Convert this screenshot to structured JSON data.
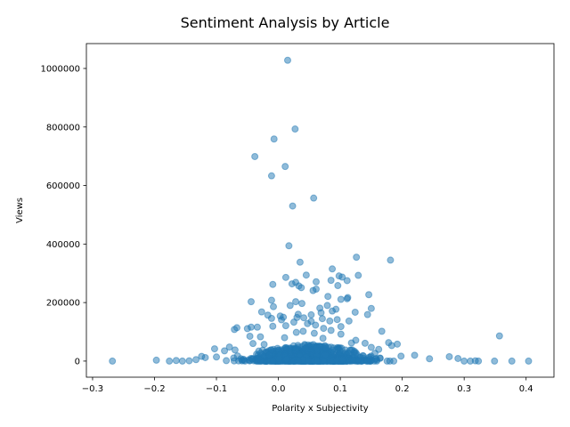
{
  "chart_data": {
    "type": "scatter",
    "title": "Sentiment Analysis by Article",
    "xlabel": "Polarity x Subjectivity",
    "ylabel": "Views",
    "xlim": [
      -0.31,
      0.445
    ],
    "ylim": [
      -55000,
      1085000
    ],
    "xticks": [
      -0.3,
      -0.2,
      -0.1,
      0.0,
      0.1,
      0.2,
      0.3,
      0.4
    ],
    "xtick_labels": [
      "−0.3",
      "−0.2",
      "−0.1",
      "0.0",
      "0.1",
      "0.2",
      "0.3",
      "0.4"
    ],
    "yticks": [
      0,
      200000,
      400000,
      600000,
      800000,
      1000000
    ],
    "ytick_labels": [
      "0",
      "200000",
      "400000",
      "600000",
      "800000",
      "1000000"
    ],
    "grid": false,
    "color": "#1f77b4",
    "points": [
      [
        0.015,
        1028000
      ],
      [
        0.027,
        793000
      ],
      [
        -0.007,
        759000
      ],
      [
        -0.038,
        699000
      ],
      [
        0.011,
        665000
      ],
      [
        -0.011,
        633000
      ],
      [
        0.057,
        557000
      ],
      [
        0.023,
        530000
      ],
      [
        0.017,
        394000
      ],
      [
        0.126,
        355000
      ],
      [
        0.181,
        345000
      ],
      [
        0.035,
        338000
      ],
      [
        0.087,
        315000
      ],
      [
        0.045,
        294000
      ],
      [
        0.098,
        291000
      ],
      [
        0.129,
        293000
      ],
      [
        0.103,
        287000
      ],
      [
        0.012,
        286000
      ],
      [
        0.111,
        275000
      ],
      [
        0.061,
        271000
      ],
      [
        0.085,
        276000
      ],
      [
        0.028,
        269000
      ],
      [
        0.022,
        264000
      ],
      [
        -0.009,
        262000
      ],
      [
        0.033,
        257000
      ],
      [
        0.096,
        258000
      ],
      [
        0.061,
        246000
      ],
      [
        0.037,
        251000
      ],
      [
        0.056,
        241000
      ],
      [
        0.146,
        227000
      ],
      [
        0.08,
        221000
      ],
      [
        0.112,
        217000
      ],
      [
        0.101,
        211000
      ],
      [
        0.111,
        213000
      ],
      [
        -0.011,
        208000
      ],
      [
        0.028,
        203000
      ],
      [
        -0.044,
        203000
      ],
      [
        0.038,
        197000
      ],
      [
        0.079,
        190000
      ],
      [
        0.019,
        190000
      ],
      [
        0.15,
        180000
      ],
      [
        0.067,
        181000
      ],
      [
        0.093,
        177000
      ],
      [
        -0.008,
        186000
      ],
      [
        0.087,
        171000
      ],
      [
        0.124,
        167000
      ],
      [
        0.069,
        165000
      ],
      [
        -0.027,
        168000
      ],
      [
        0.032,
        160000
      ],
      [
        -0.017,
        157000
      ],
      [
        0.053,
        158000
      ],
      [
        0.144,
        159000
      ],
      [
        0.003,
        154000
      ],
      [
        0.03,
        149000
      ],
      [
        0.008,
        150000
      ],
      [
        0.041,
        148000
      ],
      [
        -0.011,
        146000
      ],
      [
        0.095,
        142000
      ],
      [
        0.071,
        145000
      ],
      [
        0.114,
        137000
      ],
      [
        0.005,
        141000
      ],
      [
        0.053,
        136000
      ],
      [
        0.083,
        137000
      ],
      [
        0.025,
        133000
      ],
      [
        0.047,
        128000
      ],
      [
        0.06,
        123000
      ],
      [
        0.012,
        121000
      ],
      [
        -0.009,
        119000
      ],
      [
        0.101,
        118000
      ],
      [
        -0.034,
        116000
      ],
      [
        0.073,
        112000
      ],
      [
        -0.067,
        114000
      ],
      [
        -0.044,
        116000
      ],
      [
        -0.05,
        111000
      ],
      [
        -0.071,
        108000
      ],
      [
        0.085,
        105000
      ],
      [
        0.04,
        102000
      ],
      [
        0.167,
        102000
      ],
      [
        0.029,
        98000
      ],
      [
        0.058,
        95000
      ],
      [
        0.101,
        92000
      ],
      [
        0.357,
        86000
      ],
      [
        -0.046,
        85000
      ],
      [
        -0.029,
        83000
      ],
      [
        0.01,
        80000
      ],
      [
        0.072,
        78000
      ],
      [
        0.125,
        71000
      ],
      [
        0.178,
        63000
      ],
      [
        0.118,
        62000
      ],
      [
        0.14,
        61000
      ],
      [
        0.192,
        58000
      ],
      [
        0.183,
        53000
      ],
      [
        -0.041,
        60000
      ],
      [
        -0.023,
        57000
      ],
      [
        -0.079,
        48000
      ],
      [
        -0.103,
        42000
      ],
      [
        0.15,
        47000
      ],
      [
        0.162,
        40000
      ],
      [
        -0.087,
        35000
      ],
      [
        -0.07,
        38000
      ],
      [
        0.22,
        20000
      ],
      [
        0.276,
        15000
      ],
      [
        0.29,
        9000
      ],
      [
        0.244,
        8000
      ],
      [
        -0.124,
        16000
      ],
      [
        -0.118,
        12000
      ],
      [
        -0.1,
        14000
      ],
      [
        0.198,
        17000
      ],
      [
        -0.268,
        0
      ],
      [
        -0.197,
        3000
      ],
      [
        -0.176,
        0
      ],
      [
        -0.165,
        2000
      ],
      [
        -0.155,
        0
      ],
      [
        -0.144,
        1000
      ],
      [
        -0.133,
        5000
      ],
      [
        0.3,
        0
      ],
      [
        0.31,
        0
      ],
      [
        0.318,
        1000
      ],
      [
        0.323,
        0
      ],
      [
        0.349,
        0
      ],
      [
        0.377,
        0
      ],
      [
        0.404,
        0
      ]
    ],
    "dense_band": {
      "x_min": -0.13,
      "x_max": 0.3,
      "y_min": 0,
      "y_max": 60000,
      "count": 900
    }
  }
}
